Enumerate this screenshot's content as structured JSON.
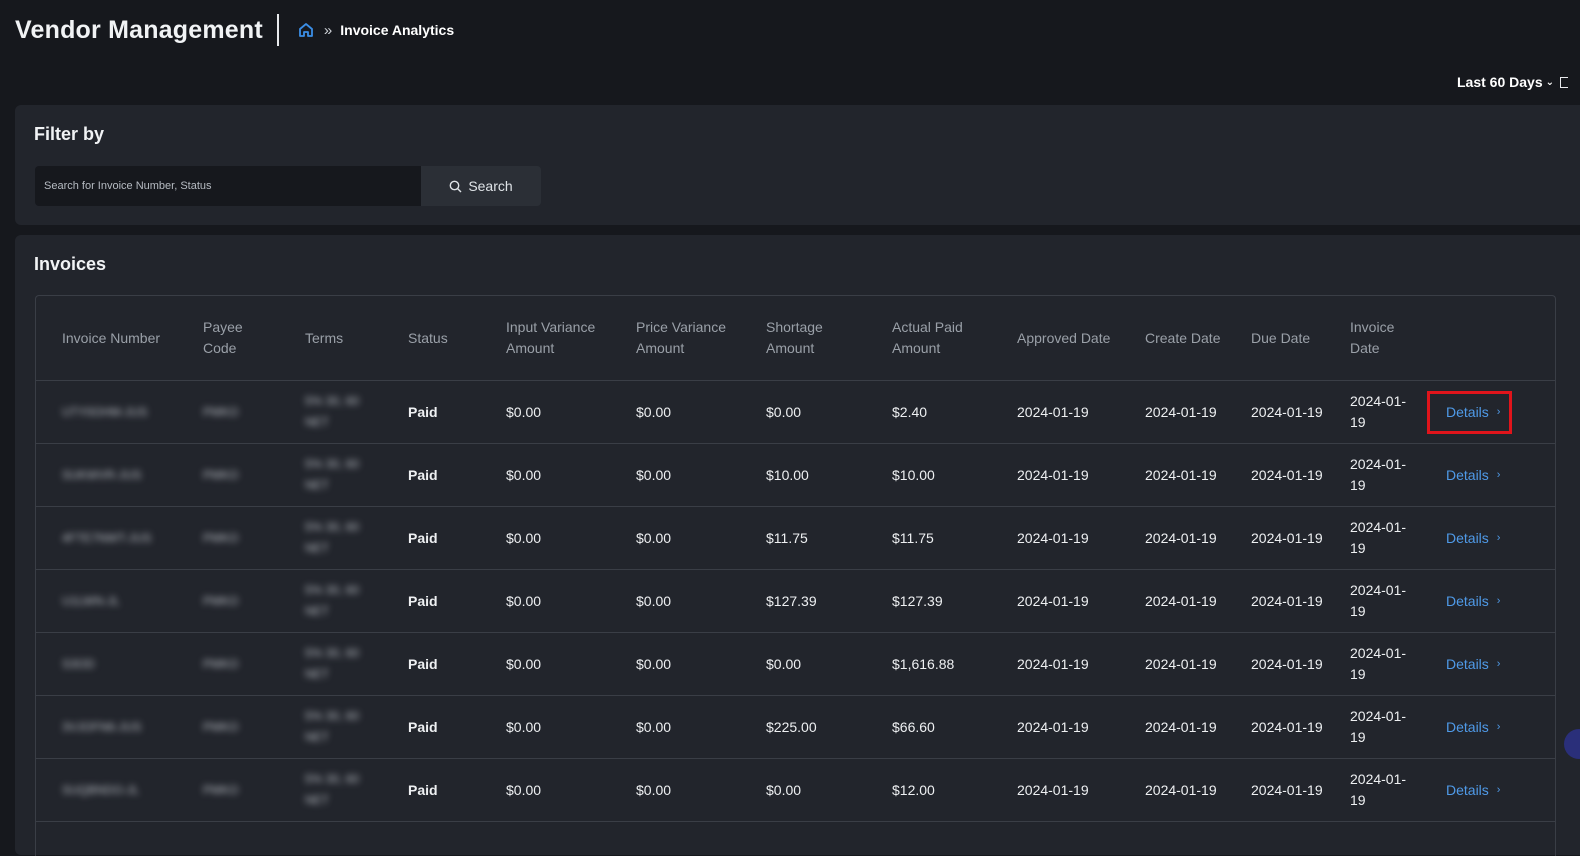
{
  "header": {
    "app_title": "Vendor Management",
    "breadcrumb": {
      "separator": "»",
      "current": "Invoice Analytics"
    }
  },
  "date_range": {
    "label": "Last 60 Days"
  },
  "filter": {
    "title": "Filter by",
    "search_placeholder": "Search for Invoice Number, Status",
    "search_button_label": "Search"
  },
  "invoices": {
    "title": "Invoices",
    "columns": [
      "Invoice Number",
      "Payee Code",
      "Terms",
      "Status",
      "Input Variance Amount",
      "Price Variance Amount",
      "Shortage Amount",
      "Actual Paid Amount",
      "Approved Date",
      "Create Date",
      "Due Date",
      "Invoice Date",
      ""
    ],
    "details_label": "Details",
    "rows": [
      {
        "invoice_number": "UTY0OHM-JUS",
        "payee_code": "PMKO",
        "terms": "5% 30, 60 NET",
        "status": "Paid",
        "input_variance": "$0.00",
        "price_variance": "$0.00",
        "shortage": "$0.00",
        "actual_paid": "$2.40",
        "approved_date": "2024-01-19",
        "create_date": "2024-01-19",
        "due_date": "2024-01-19",
        "invoice_date": "2024-01-19"
      },
      {
        "invoice_number": "SUKWVR-JUS",
        "payee_code": "PMKO",
        "terms": "5% 30, 60 NET",
        "status": "Paid",
        "input_variance": "$0.00",
        "price_variance": "$0.00",
        "shortage": "$10.00",
        "actual_paid": "$10.00",
        "approved_date": "2024-01-19",
        "create_date": "2024-01-19",
        "due_date": "2024-01-19",
        "invoice_date": "2024-01-19"
      },
      {
        "invoice_number": "4FTE7NWT-JUS",
        "payee_code": "PMKO",
        "terms": "5% 30, 60 NET",
        "status": "Paid",
        "input_variance": "$0.00",
        "price_variance": "$0.00",
        "shortage": "$11.75",
        "actual_paid": "$11.75",
        "approved_date": "2024-01-19",
        "create_date": "2024-01-19",
        "due_date": "2024-01-19",
        "invoice_date": "2024-01-19"
      },
      {
        "invoice_number": "U1LWN-JL",
        "payee_code": "PMKO",
        "terms": "5% 30, 60 NET",
        "status": "Paid",
        "input_variance": "$0.00",
        "price_variance": "$0.00",
        "shortage": "$127.39",
        "actual_paid": "$127.39",
        "approved_date": "2024-01-19",
        "create_date": "2024-01-19",
        "due_date": "2024-01-19",
        "invoice_date": "2024-01-19"
      },
      {
        "invoice_number": "S3OD",
        "payee_code": "PMKO",
        "terms": "5% 30, 60 NET",
        "status": "Paid",
        "input_variance": "$0.00",
        "price_variance": "$0.00",
        "shortage": "$0.00",
        "actual_paid": "$1,616.88",
        "approved_date": "2024-01-19",
        "create_date": "2024-01-19",
        "due_date": "2024-01-19",
        "invoice_date": "2024-01-19"
      },
      {
        "invoice_number": "3VJOFN6-JUS",
        "payee_code": "PMKO",
        "terms": "5% 30, 60 NET",
        "status": "Paid",
        "input_variance": "$0.00",
        "price_variance": "$0.00",
        "shortage": "$225.00",
        "actual_paid": "$66.60",
        "approved_date": "2024-01-19",
        "create_date": "2024-01-19",
        "due_date": "2024-01-19",
        "invoice_date": "2024-01-19"
      },
      {
        "invoice_number": "SUQBNDO-JL",
        "payee_code": "PMKO",
        "terms": "5% 30, 60 NET",
        "status": "Paid",
        "input_variance": "$0.00",
        "price_variance": "$0.00",
        "shortage": "$0.00",
        "actual_paid": "$12.00",
        "approved_date": "2024-01-19",
        "create_date": "2024-01-19",
        "due_date": "2024-01-19",
        "invoice_date": "2024-01-19"
      }
    ]
  },
  "colors": {
    "accent": "#4f9ae8",
    "highlight": "#e0141b",
    "background": "#16181d",
    "card": "#22252c"
  },
  "icons": {
    "home": "home-icon",
    "search": "search-icon",
    "calendar": "calendar-icon",
    "chevron": "chevron-right-icon"
  }
}
